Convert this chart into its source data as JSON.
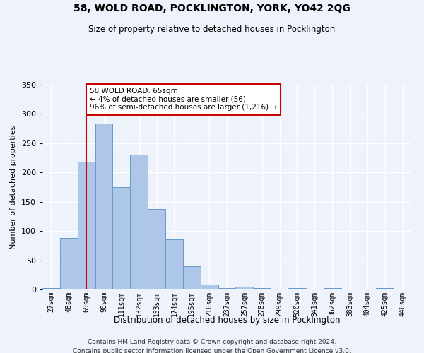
{
  "title": "58, WOLD ROAD, POCKLINGTON, YORK, YO42 2QG",
  "subtitle": "Size of property relative to detached houses in Pocklington",
  "xlabel": "Distribution of detached houses by size in Pocklington",
  "ylabel": "Number of detached properties",
  "categories": [
    "27sqm",
    "48sqm",
    "69sqm",
    "90sqm",
    "111sqm",
    "132sqm",
    "153sqm",
    "174sqm",
    "195sqm",
    "216sqm",
    "237sqm",
    "257sqm",
    "278sqm",
    "299sqm",
    "320sqm",
    "341sqm",
    "362sqm",
    "383sqm",
    "404sqm",
    "425sqm",
    "446sqm"
  ],
  "values": [
    2,
    88,
    218,
    284,
    175,
    231,
    138,
    86,
    40,
    9,
    2,
    5,
    2,
    1,
    2,
    0,
    3,
    0,
    0,
    2,
    0
  ],
  "bar_color": "#aec6e8",
  "bar_edge_color": "#6699cc",
  "background_color": "#eef2fa",
  "grid_color": "#ffffff",
  "annotation_text_line1": "58 WOLD ROAD: 65sqm",
  "annotation_text_line2": "← 4% of detached houses are smaller (56)",
  "annotation_text_line3": "96% of semi-detached houses are larger (1,216) →",
  "annotation_box_facecolor": "#ffffff",
  "annotation_box_edgecolor": "#cc0000",
  "vline_color": "#cc0000",
  "vline_x": 2,
  "ylim": [
    0,
    350
  ],
  "yticks": [
    0,
    50,
    100,
    150,
    200,
    250,
    300,
    350
  ],
  "footer1": "Contains HM Land Registry data © Crown copyright and database right 2024.",
  "footer2": "Contains public sector information licensed under the Open Government Licence v3.0."
}
